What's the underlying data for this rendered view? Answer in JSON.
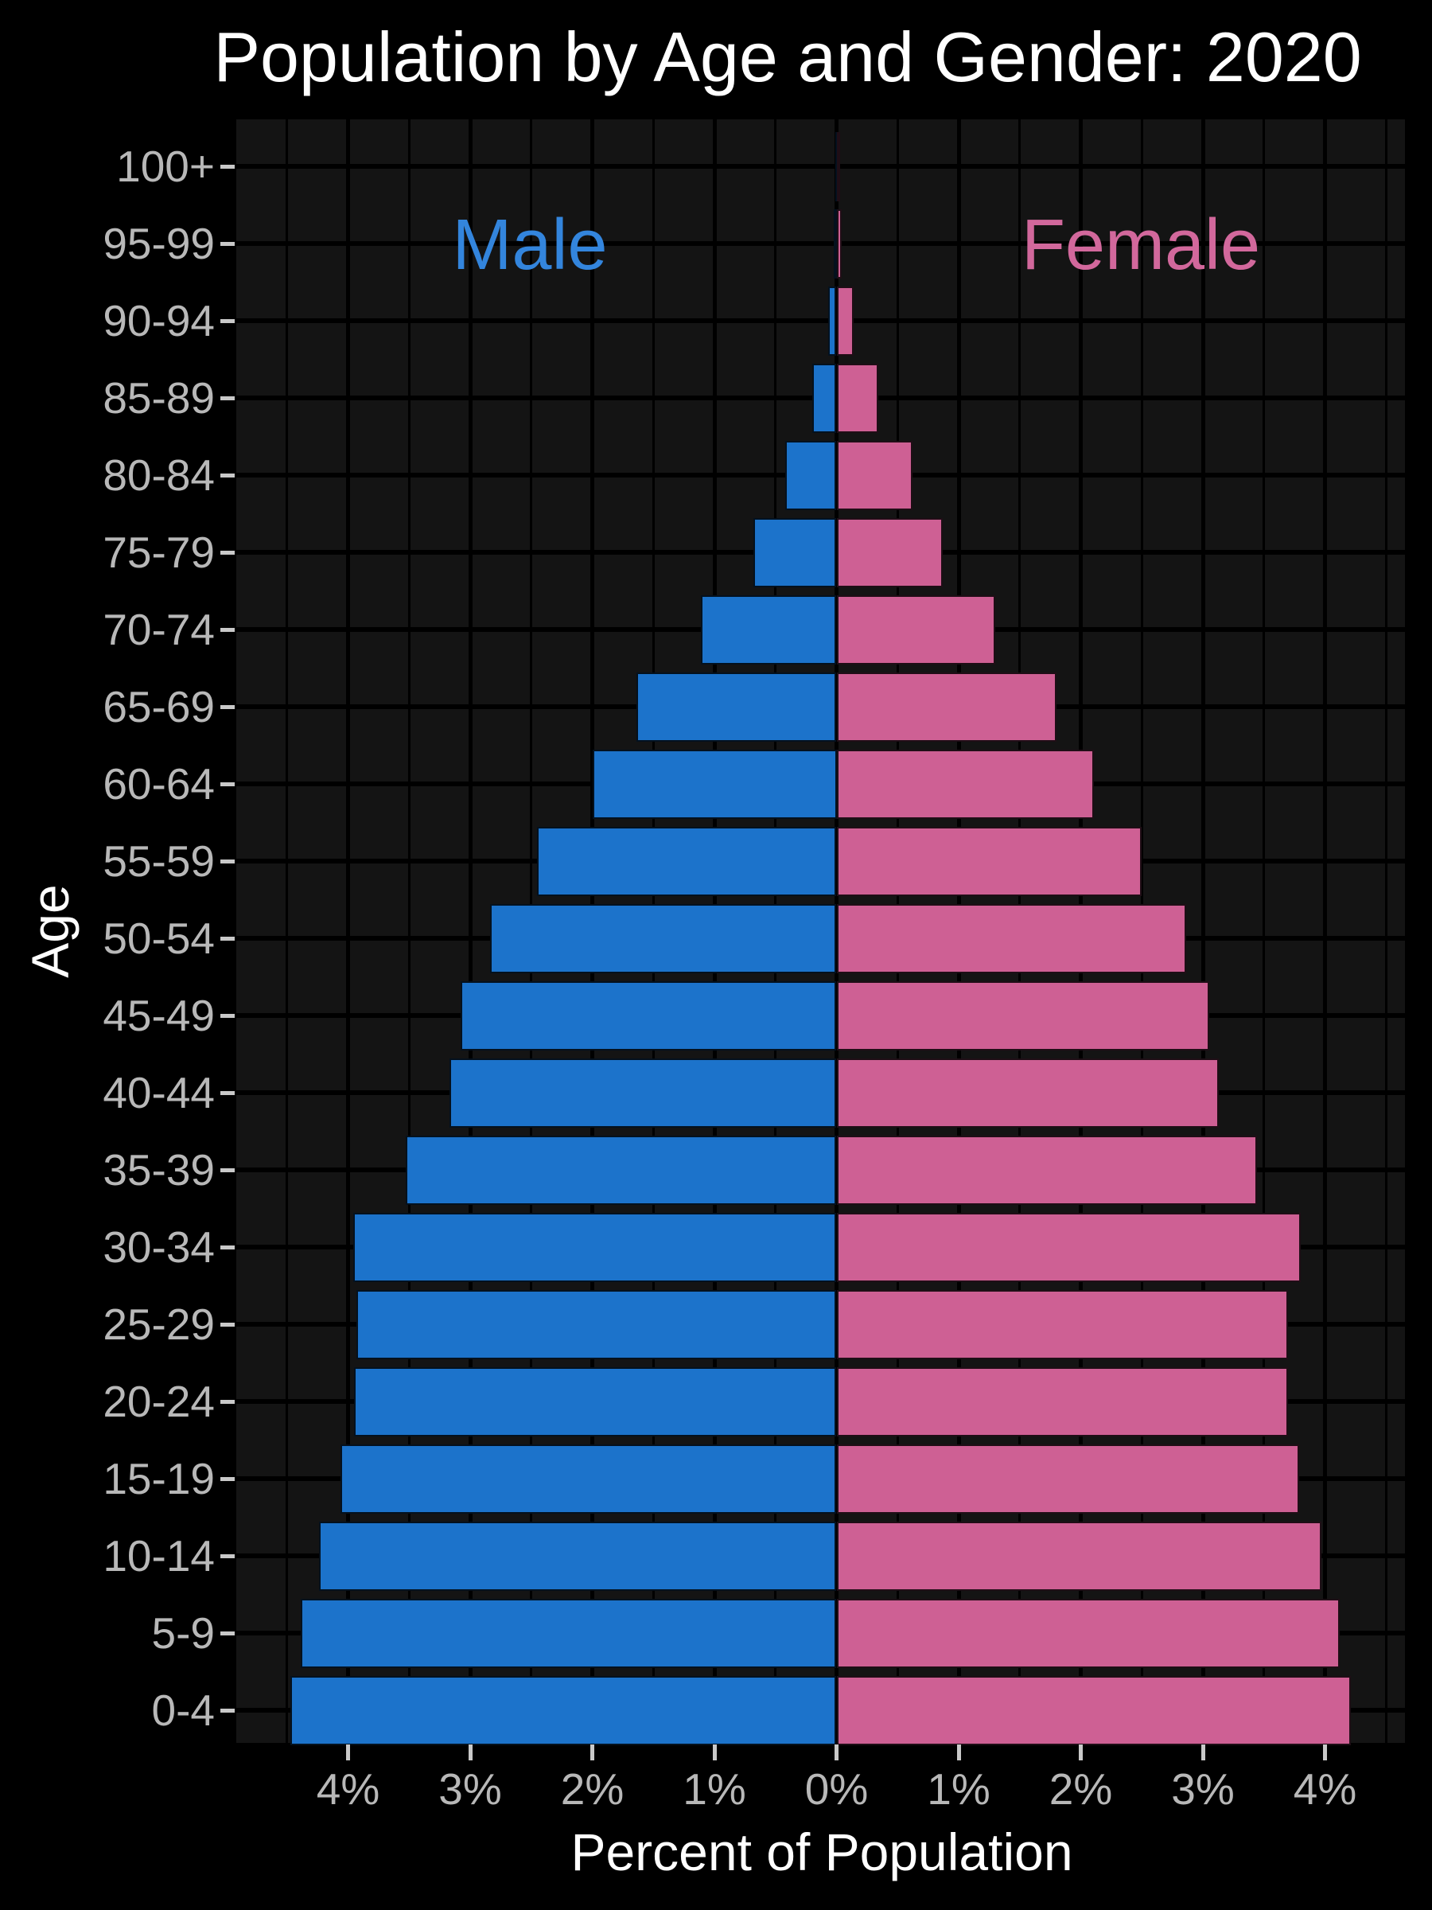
{
  "title": "Population by Age and Gender: 2020",
  "annotations": {
    "male_label": "Male",
    "female_label": "Female"
  },
  "colors": {
    "male_bar": "#1c73cb",
    "female_bar": "#ce6094",
    "male_label": "#3385dd",
    "female_label": "#d2689c",
    "panel_background": "#141414",
    "page_background": "#000000",
    "gridline": "#000000",
    "tick_label": "#b8b8b8",
    "tick_mark": "#c9c9c9",
    "title_text": "#ffffff"
  },
  "chart_data": {
    "type": "bar",
    "subtype": "population-pyramid",
    "title": "Population by Age and Gender: 2020",
    "xlabel": "Percent of Population",
    "ylabel": "Age",
    "categories_top_to_bottom": [
      "100+",
      "95-99",
      "90-94",
      "85-89",
      "80-84",
      "75-79",
      "70-74",
      "65-69",
      "60-64",
      "55-59",
      "50-54",
      "45-49",
      "40-44",
      "35-39",
      "30-34",
      "25-29",
      "20-24",
      "15-19",
      "10-14",
      "5-9",
      "0-4"
    ],
    "series": [
      {
        "name": "Male",
        "side": "left",
        "color": "#1c73cb",
        "values_pct_top_to_bottom": [
          0.01,
          0.02,
          0.07,
          0.2,
          0.42,
          0.68,
          1.11,
          1.64,
          2.0,
          2.45,
          2.84,
          3.08,
          3.17,
          3.53,
          3.96,
          3.93,
          3.95,
          4.06,
          4.24,
          4.39,
          4.47
        ]
      },
      {
        "name": "Female",
        "side": "right",
        "color": "#ce6094",
        "values_pct_top_to_bottom": [
          0.01,
          0.04,
          0.14,
          0.34,
          0.62,
          0.87,
          1.3,
          1.8,
          2.11,
          2.5,
          2.86,
          3.05,
          3.13,
          3.44,
          3.8,
          3.7,
          3.7,
          3.79,
          3.97,
          4.12,
          4.21
        ]
      }
    ],
    "x_tick_labels": [
      "4%",
      "3%",
      "2%",
      "1%",
      "0%",
      "1%",
      "2%",
      "3%",
      "4%"
    ],
    "x_tick_values_pct": [
      -4,
      -3,
      -2,
      -1,
      0,
      1,
      2,
      3,
      4
    ],
    "xlim_pct": [
      -4.92,
      4.66
    ],
    "grid": {
      "major_pct_step": 1,
      "minor_pct_step": 0.5,
      "horizontal": "at each age row center"
    },
    "legend_position": "in-plot text annotations (Male left, Female right)"
  }
}
